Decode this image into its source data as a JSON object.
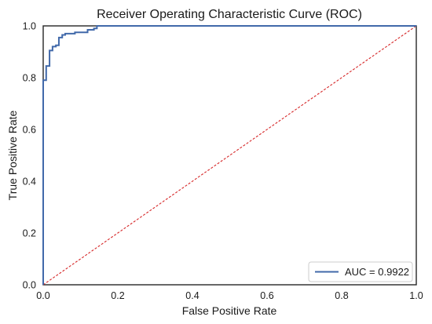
{
  "chart_data": {
    "type": "line",
    "title": "Receiver Operating Characteristic Curve (ROC)",
    "xlabel": "False Positive Rate",
    "ylabel": "True Positive Rate",
    "xlim": [
      0,
      1
    ],
    "ylim": [
      0,
      1
    ],
    "xticks": [
      "0.0",
      "0.2",
      "0.4",
      "0.6",
      "0.8",
      "1.0"
    ],
    "yticks": [
      "0.0",
      "0.2",
      "0.4",
      "0.6",
      "0.8",
      "1.0"
    ],
    "grid": false,
    "legend_position": "bottom-right",
    "series": [
      {
        "name": "AUC = 0.9922",
        "color": "#4169aa",
        "style": "solid-step",
        "x": [
          0.0,
          0.0,
          0.008,
          0.008,
          0.017,
          0.017,
          0.025,
          0.025,
          0.034,
          0.034,
          0.042,
          0.042,
          0.051,
          0.051,
          0.059,
          0.059,
          0.085,
          0.085,
          0.119,
          0.119,
          0.136,
          0.136,
          0.144,
          0.144,
          1.0
        ],
        "y": [
          0.0,
          0.79,
          0.79,
          0.845,
          0.845,
          0.905,
          0.905,
          0.92,
          0.92,
          0.925,
          0.925,
          0.955,
          0.955,
          0.965,
          0.965,
          0.97,
          0.97,
          0.975,
          0.975,
          0.985,
          0.985,
          0.99,
          0.99,
          1.0,
          1.0
        ]
      },
      {
        "name": "",
        "color": "#d62728",
        "style": "dashed",
        "x": [
          0,
          1
        ],
        "y": [
          0,
          1
        ]
      }
    ]
  }
}
